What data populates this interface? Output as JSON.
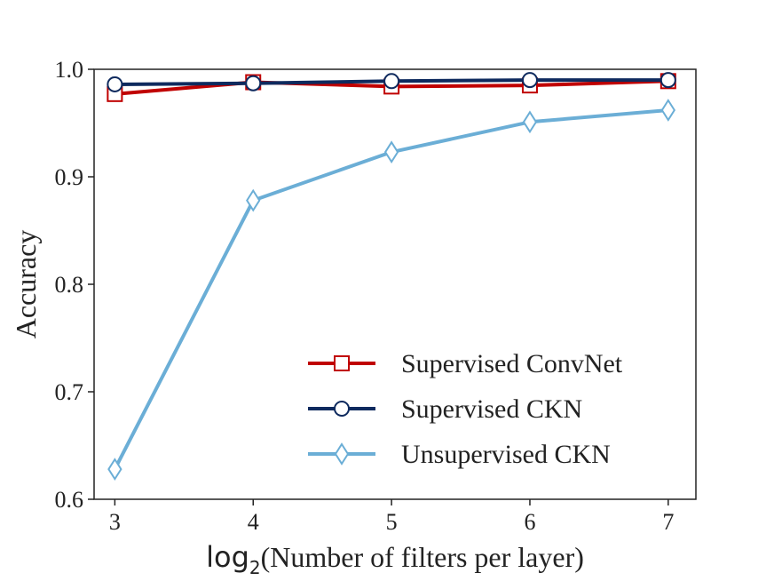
{
  "chart_data": {
    "type": "line",
    "x": [
      3,
      4,
      5,
      6,
      7
    ],
    "xticks": [
      "3",
      "4",
      "5",
      "6",
      "7"
    ],
    "yticks": [
      "0.6",
      "0.7",
      "0.8",
      "0.9",
      "1.0"
    ],
    "xlim": [
      2.85,
      7.2
    ],
    "ylim": [
      0.6,
      1.0
    ],
    "xlabel": {
      "prefix": "log",
      "subscript": "2",
      "suffix": "(Number of filters per layer)"
    },
    "ylabel": "Accuracy",
    "grid": false,
    "legend_position": "lower-right",
    "series": [
      {
        "name": "Supervised ConvNet",
        "marker": "square",
        "color": "#c00000",
        "values": [
          0.977,
          0.988,
          0.984,
          0.985,
          0.989
        ]
      },
      {
        "name": "Supervised CKN",
        "marker": "circle",
        "color": "#0e2a5e",
        "values": [
          0.986,
          0.987,
          0.989,
          0.99,
          0.99
        ]
      },
      {
        "name": "Unsupervised CKN",
        "marker": "diamond",
        "color": "#6baed6",
        "values": [
          0.628,
          0.878,
          0.923,
          0.951,
          0.962
        ]
      }
    ]
  }
}
